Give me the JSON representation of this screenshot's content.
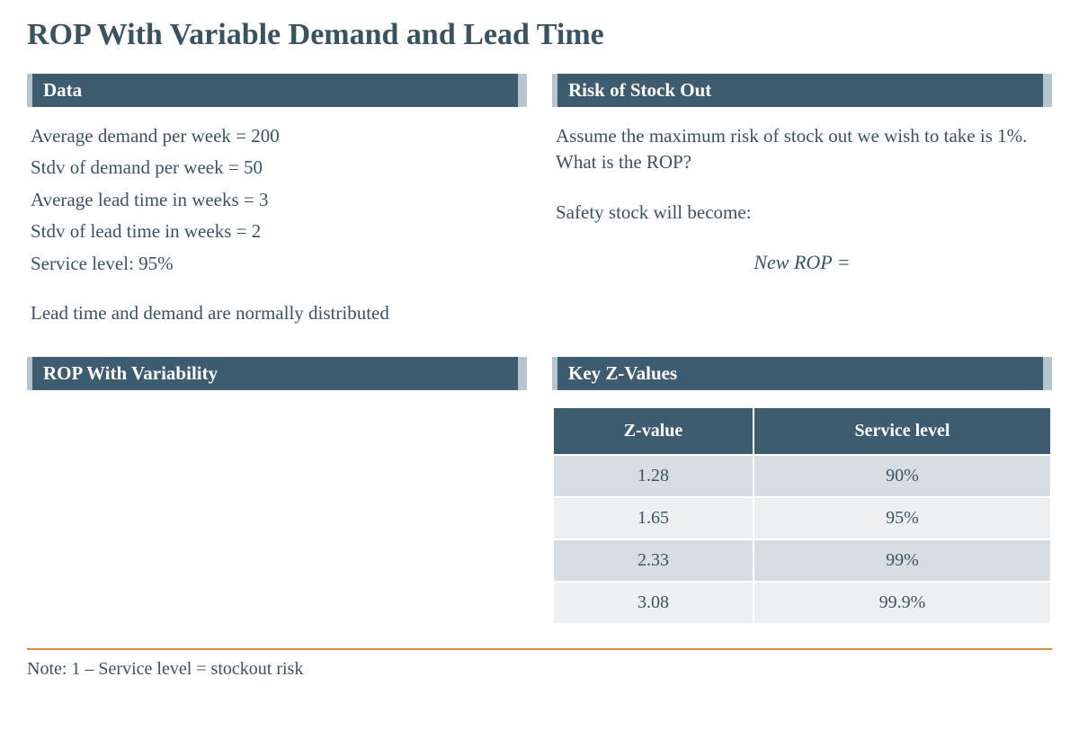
{
  "title": "ROP With Variable Demand and Lead Time",
  "colors": {
    "header_bg": "#3e5c70",
    "header_border": "#b6c4ce",
    "text": "#3a5361",
    "rule": "#d98b3f",
    "table_header_bg": "#3e5c70",
    "row_odd": "#d8dde1",
    "row_even": "#edeff1",
    "background": "#ffffff"
  },
  "typography": {
    "title_fontsize": 34,
    "header_fontsize": 21,
    "body_fontsize": 21,
    "table_header_fontsize": 20,
    "table_cell_fontsize": 20,
    "font_family": "Georgia"
  },
  "sections": {
    "data": {
      "header": "Data",
      "lines": [
        "Average demand per week = 200",
        "Stdv of demand per week = 50",
        "Average lead time in weeks = 3",
        "Stdv of lead time in weeks = 2",
        "Service level: 95%"
      ],
      "extra": "Lead time and demand are normally distributed"
    },
    "risk": {
      "header": "Risk of Stock Out",
      "line1": "Assume the maximum risk of stock out we wish to take is 1%. What is the ROP?",
      "line2": "Safety stock will become:",
      "formula": "New ROP  ="
    },
    "rop": {
      "header": "ROP With Variability"
    },
    "zvalues": {
      "header": "Key Z-Values",
      "table": {
        "type": "table",
        "columns": [
          "Z-value",
          "Service level"
        ],
        "rows": [
          [
            "1.28",
            "90%"
          ],
          [
            "1.65",
            "95%"
          ],
          [
            "2.33",
            "99%"
          ],
          [
            "3.08",
            "99.9%"
          ]
        ]
      }
    }
  },
  "footnote": "Note: 1 – Service level = stockout risk"
}
